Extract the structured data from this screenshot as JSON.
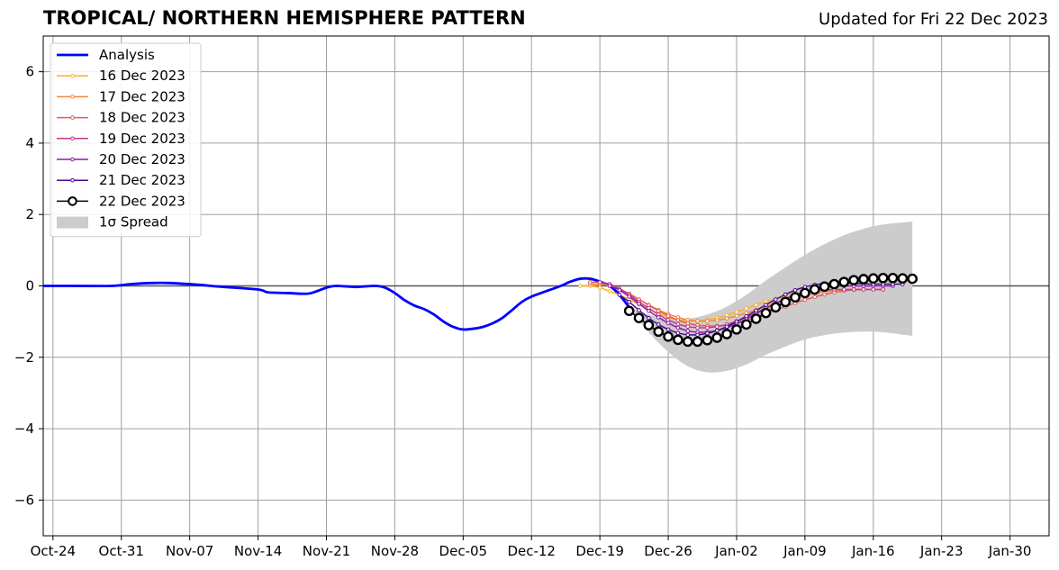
{
  "chart_data": {
    "type": "line",
    "title": "TROPICAL/ NORTHERN HEMISPHERE PATTERN",
    "subtitle": "Updated for Fri 22 Dec 2023",
    "xlabel": "",
    "ylabel": "",
    "grid": true,
    "legend_position": "top-left",
    "xlim": [
      "2023-10-23",
      "2024-02-03"
    ],
    "ylim": [
      -7,
      7
    ],
    "x_tick_labels": [
      "Oct-24",
      "Oct-31",
      "Nov-07",
      "Nov-14",
      "Nov-21",
      "Nov-28",
      "Dec-05",
      "Dec-12",
      "Dec-19",
      "Dec-26",
      "Jan-02",
      "Jan-09",
      "Jan-16",
      "Jan-23",
      "Jan-30"
    ],
    "x_tick_dates": [
      "2023-10-24",
      "2023-10-31",
      "2023-11-07",
      "2023-11-14",
      "2023-11-21",
      "2023-11-28",
      "2023-12-05",
      "2023-12-12",
      "2023-12-19",
      "2023-12-26",
      "2024-01-02",
      "2024-01-09",
      "2024-01-16",
      "2024-01-23",
      "2024-01-30"
    ],
    "y_ticks": [
      6,
      4,
      2,
      0,
      -2,
      -4,
      -6
    ],
    "y_tick_labels": [
      "6",
      "4",
      "2",
      "0",
      "−2",
      "−4",
      "−6"
    ],
    "analysis": {
      "name": "Analysis",
      "color": "#0000ff",
      "points": [
        [
          "2023-10-23",
          0.0
        ],
        [
          "2023-10-26",
          0.0
        ],
        [
          "2023-10-30",
          0.0
        ],
        [
          "2023-11-01",
          0.05
        ],
        [
          "2023-11-03",
          0.08
        ],
        [
          "2023-11-05",
          0.08
        ],
        [
          "2023-11-08",
          0.03
        ],
        [
          "2023-11-10",
          -0.02
        ],
        [
          "2023-11-14",
          -0.1
        ],
        [
          "2023-11-15",
          -0.18
        ],
        [
          "2023-11-17",
          -0.2
        ],
        [
          "2023-11-19",
          -0.22
        ],
        [
          "2023-11-20",
          -0.15
        ],
        [
          "2023-11-21",
          -0.05
        ],
        [
          "2023-11-22",
          0.0
        ],
        [
          "2023-11-24",
          -0.03
        ],
        [
          "2023-11-26",
          0.0
        ],
        [
          "2023-11-27",
          -0.05
        ],
        [
          "2023-11-28",
          -0.2
        ],
        [
          "2023-11-29",
          -0.4
        ],
        [
          "2023-11-30",
          -0.55
        ],
        [
          "2023-12-01",
          -0.65
        ],
        [
          "2023-12-02",
          -0.8
        ],
        [
          "2023-12-03",
          -1.0
        ],
        [
          "2023-12-04",
          -1.15
        ],
        [
          "2023-12-05",
          -1.22
        ],
        [
          "2023-12-06",
          -1.2
        ],
        [
          "2023-12-07",
          -1.15
        ],
        [
          "2023-12-08",
          -1.05
        ],
        [
          "2023-12-09",
          -0.9
        ],
        [
          "2023-12-10",
          -0.68
        ],
        [
          "2023-12-11",
          -0.45
        ],
        [
          "2023-12-12",
          -0.3
        ],
        [
          "2023-12-14",
          -0.1
        ],
        [
          "2023-12-15",
          0.0
        ],
        [
          "2023-12-16",
          0.12
        ],
        [
          "2023-12-17",
          0.2
        ],
        [
          "2023-12-18",
          0.2
        ],
        [
          "2023-12-19",
          0.12
        ],
        [
          "2023-12-20",
          0.0
        ],
        [
          "2023-12-21",
          -0.25
        ],
        [
          "2023-12-22",
          -0.6
        ]
      ]
    },
    "spread": {
      "name": "1σ Spread",
      "color": "#cccccc",
      "upper": [
        [
          "2023-12-22",
          -0.6
        ],
        [
          "2023-12-24",
          -0.8
        ],
        [
          "2023-12-26",
          -0.92
        ],
        [
          "2023-12-28",
          -0.92
        ],
        [
          "2023-12-30",
          -0.8
        ],
        [
          "2024-01-01",
          -0.58
        ],
        [
          "2024-01-03",
          -0.25
        ],
        [
          "2024-01-05",
          0.15
        ],
        [
          "2024-01-07",
          0.52
        ],
        [
          "2024-01-09",
          0.87
        ],
        [
          "2024-01-11",
          1.17
        ],
        [
          "2024-01-13",
          1.42
        ],
        [
          "2024-01-15",
          1.6
        ],
        [
          "2024-01-17",
          1.72
        ],
        [
          "2024-01-20",
          1.8
        ]
      ],
      "lower": [
        [
          "2023-12-22",
          -0.6
        ],
        [
          "2023-12-24",
          -1.3
        ],
        [
          "2023-12-26",
          -1.85
        ],
        [
          "2023-12-28",
          -2.25
        ],
        [
          "2023-12-30",
          -2.42
        ],
        [
          "2024-01-01",
          -2.38
        ],
        [
          "2024-01-03",
          -2.2
        ],
        [
          "2024-01-05",
          -1.93
        ],
        [
          "2024-01-07",
          -1.7
        ],
        [
          "2024-01-09",
          -1.5
        ],
        [
          "2024-01-11",
          -1.38
        ],
        [
          "2024-01-13",
          -1.31
        ],
        [
          "2024-01-15",
          -1.28
        ],
        [
          "2024-01-17",
          -1.3
        ],
        [
          "2024-01-20",
          -1.4
        ]
      ]
    },
    "series": [
      {
        "name": "16 Dec 2023",
        "color": "#fcb127",
        "marker": "small-dot",
        "x_start": "2023-12-17",
        "values": [
          0.0,
          0.0,
          -0.05,
          -0.15,
          -0.25,
          -0.38,
          -0.52,
          -0.65,
          -0.77,
          -0.88,
          -0.95,
          -0.98,
          -0.98,
          -0.95,
          -0.9,
          -0.82,
          -0.73,
          -0.63,
          -0.53,
          -0.44,
          -0.36,
          -0.29,
          -0.24,
          -0.19,
          -0.16,
          -0.14,
          -0.13,
          -0.13
        ]
      },
      {
        "name": "17 Dec 2023",
        "color": "#f48739",
        "marker": "small-dot",
        "x_start": "2023-12-18",
        "values": [
          0.05,
          0.05,
          0.0,
          -0.1,
          -0.22,
          -0.38,
          -0.53,
          -0.67,
          -0.79,
          -0.88,
          -0.95,
          -0.98,
          -0.98,
          -0.96,
          -0.91,
          -0.84,
          -0.76,
          -0.67,
          -0.58,
          -0.49,
          -0.41,
          -0.33,
          -0.26,
          -0.2,
          -0.16,
          -0.13,
          -0.11,
          -0.1,
          -0.1
        ]
      },
      {
        "name": "18 Dec 2023",
        "color": "#e15c60",
        "marker": "small-dot",
        "x_start": "2023-12-18",
        "values": [
          0.1,
          0.1,
          0.05,
          -0.08,
          -0.22,
          -0.38,
          -0.54,
          -0.7,
          -0.84,
          -0.96,
          -1.05,
          -1.1,
          -1.12,
          -1.12,
          -1.1,
          -1.05,
          -0.97,
          -0.88,
          -0.78,
          -0.68,
          -0.58,
          -0.48,
          -0.39,
          -0.31,
          -0.24,
          -0.18,
          -0.14,
          -0.11,
          -0.1,
          -0.1,
          -0.1
        ]
      },
      {
        "name": "19 Dec 2023",
        "color": "#be3b8a",
        "marker": "small-dot",
        "x_start": "2023-12-19",
        "values": [
          0.1,
          0.05,
          -0.08,
          -0.25,
          -0.45,
          -0.62,
          -0.8,
          -0.95,
          -1.07,
          -1.14,
          -1.17,
          -1.17,
          -1.14,
          -1.08,
          -0.99,
          -0.88,
          -0.75,
          -0.62,
          -0.49,
          -0.37,
          -0.27,
          -0.19,
          -0.14,
          -0.11,
          -0.1,
          -0.1,
          -0.1,
          -0.1,
          -0.1,
          -0.1
        ]
      },
      {
        "name": "20 Dec 2023",
        "color": "#8c1aa3",
        "marker": "small-dot",
        "x_start": "2023-12-20",
        "values": [
          0.0,
          -0.12,
          -0.3,
          -0.5,
          -0.7,
          -0.88,
          -1.04,
          -1.17,
          -1.26,
          -1.3,
          -1.29,
          -1.25,
          -1.17,
          -1.06,
          -0.93,
          -0.78,
          -0.63,
          -0.49,
          -0.36,
          -0.25,
          -0.16,
          -0.09,
          -0.04,
          -0.01,
          0.0,
          0.0,
          0.0,
          0.0,
          0.0,
          0.0
        ]
      },
      {
        "name": "21 Dec 2023",
        "color": "#4b0a8c",
        "marker": "small-dot",
        "x_start": "2023-12-21",
        "values": [
          -0.25,
          -0.45,
          -0.68,
          -0.9,
          -1.08,
          -1.22,
          -1.32,
          -1.37,
          -1.37,
          -1.33,
          -1.25,
          -1.14,
          -1.0,
          -0.85,
          -0.69,
          -0.53,
          -0.38,
          -0.24,
          -0.12,
          -0.03,
          0.03,
          0.07,
          0.08,
          0.08,
          0.07,
          0.06,
          0.05,
          0.05,
          0.05,
          0.05
        ]
      },
      {
        "name": "22 Dec 2023",
        "color": "#000000",
        "marker": "open-circle",
        "x_start": "2023-12-22",
        "values": [
          -0.7,
          -0.9,
          -1.1,
          -1.28,
          -1.42,
          -1.51,
          -1.56,
          -1.56,
          -1.52,
          -1.45,
          -1.35,
          -1.22,
          -1.08,
          -0.92,
          -0.76,
          -0.6,
          -0.45,
          -0.32,
          -0.2,
          -0.1,
          -0.02,
          0.05,
          0.11,
          0.16,
          0.19,
          0.21,
          0.22,
          0.22,
          0.21,
          0.2
        ]
      }
    ]
  }
}
